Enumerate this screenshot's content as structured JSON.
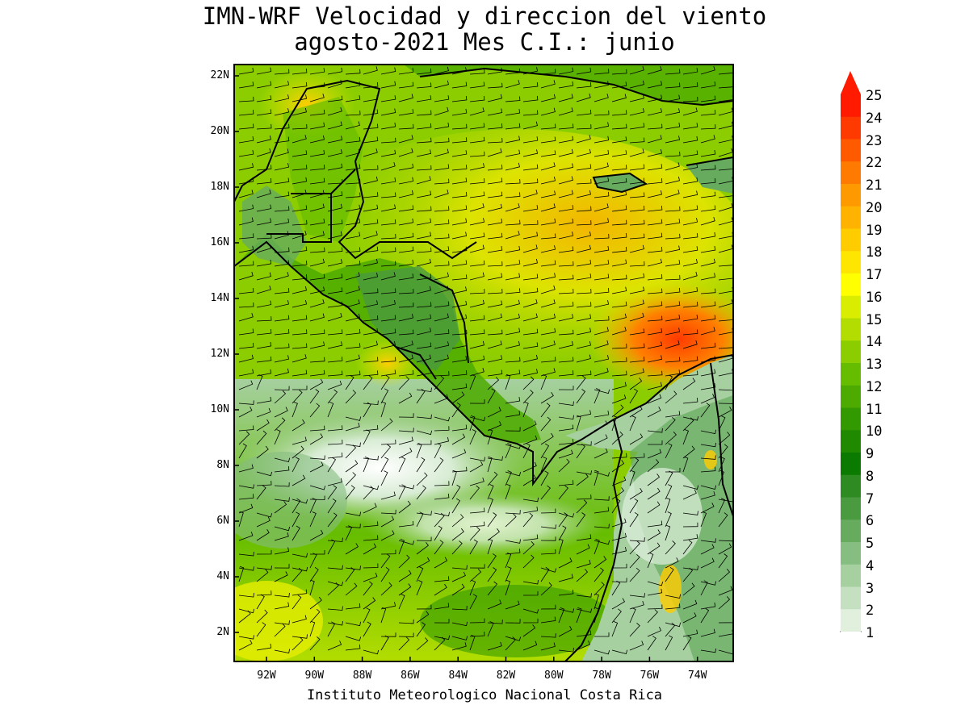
{
  "title": {
    "line1": "IMN-WRF Velocidad y direccion del viento",
    "line2": "agosto-2021 Mes C.I.: junio"
  },
  "credit": "Instituto Meteorologico Nacional Costa Rica",
  "map": {
    "lat_labels": [
      "22N",
      "20N",
      "18N",
      "16N",
      "14N",
      "12N",
      "10N",
      "8N",
      "6N",
      "4N",
      "2N"
    ],
    "lon_labels": [
      "92W",
      "90W",
      "88W",
      "86W",
      "84W",
      "82W",
      "80W",
      "78W",
      "76W",
      "74W"
    ]
  },
  "colorbar": {
    "labels": [
      "25",
      "24",
      "23",
      "22",
      "21",
      "20",
      "19",
      "18",
      "17",
      "16",
      "15",
      "14",
      "13",
      "12",
      "11",
      "10",
      "9",
      "8",
      "7",
      "6",
      "5",
      "4",
      "3",
      "2",
      "1"
    ],
    "colors": [
      "#ff1a00",
      "#ff3a00",
      "#ff5a00",
      "#ff7a00",
      "#ff9900",
      "#ffb300",
      "#ffcc00",
      "#ffe600",
      "#ffff00",
      "#d9ed00",
      "#b3dd00",
      "#8ccd00",
      "#66bd00",
      "#4caa00",
      "#339900",
      "#1f8a00",
      "#0a7a00",
      "#2e8b22",
      "#4a9a40",
      "#66ab5e",
      "#86bd80",
      "#a6d0a0",
      "#c4e0c0",
      "#e0f0dd",
      "#ffffff"
    ]
  }
}
